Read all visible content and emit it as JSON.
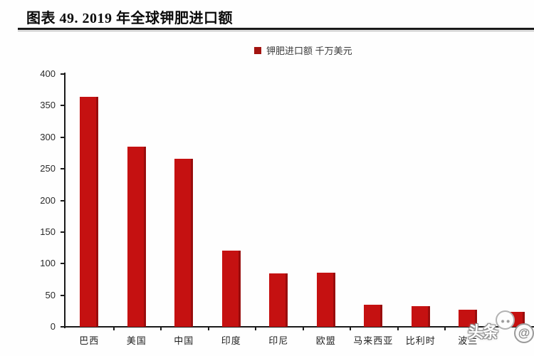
{
  "figure": {
    "title": "图表 49. 2019 年全球钾肥进口额"
  },
  "legend": {
    "label": "钾肥进口额 千万美元"
  },
  "watermark": {
    "brand": "头条",
    "at_symbol": "@"
  },
  "chart_data": {
    "type": "bar",
    "title": "2019 年全球钾肥进口额",
    "legend_label": "钾肥进口额 千万美元",
    "unit": "千万美元",
    "categories": [
      "巴西",
      "美国",
      "中国",
      "印度",
      "印尼",
      "欧盟",
      "马来西亚",
      "比利时",
      "波兰",
      ""
    ],
    "values": [
      364,
      285,
      266,
      121,
      85,
      86,
      35,
      33,
      27,
      24
    ],
    "xlabel": "",
    "ylabel": "",
    "ylim": [
      0,
      400
    ],
    "yticks": [
      0,
      50,
      100,
      150,
      200,
      250,
      300,
      350,
      400
    ],
    "grid": false,
    "legend_position": "top-center",
    "bar_color": "#c51111",
    "legend_marker_color": "#a31410",
    "axis_color": "#1b1b1b"
  }
}
